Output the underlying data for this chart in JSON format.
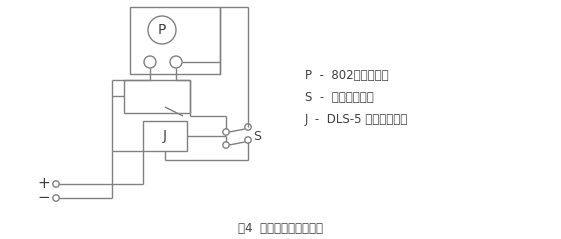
{
  "bg_color": "#ffffff",
  "line_color": "#808080",
  "text_color": "#404040",
  "title": "图4  动作时间检验线路图",
  "legend_lines": [
    "P  -  802数字毫秒表",
    "S  -  双刀双掷开关",
    "J  -  DLS-5 双位置继电器"
  ],
  "title_fontsize": 8.5,
  "legend_fontsize": 8.5
}
